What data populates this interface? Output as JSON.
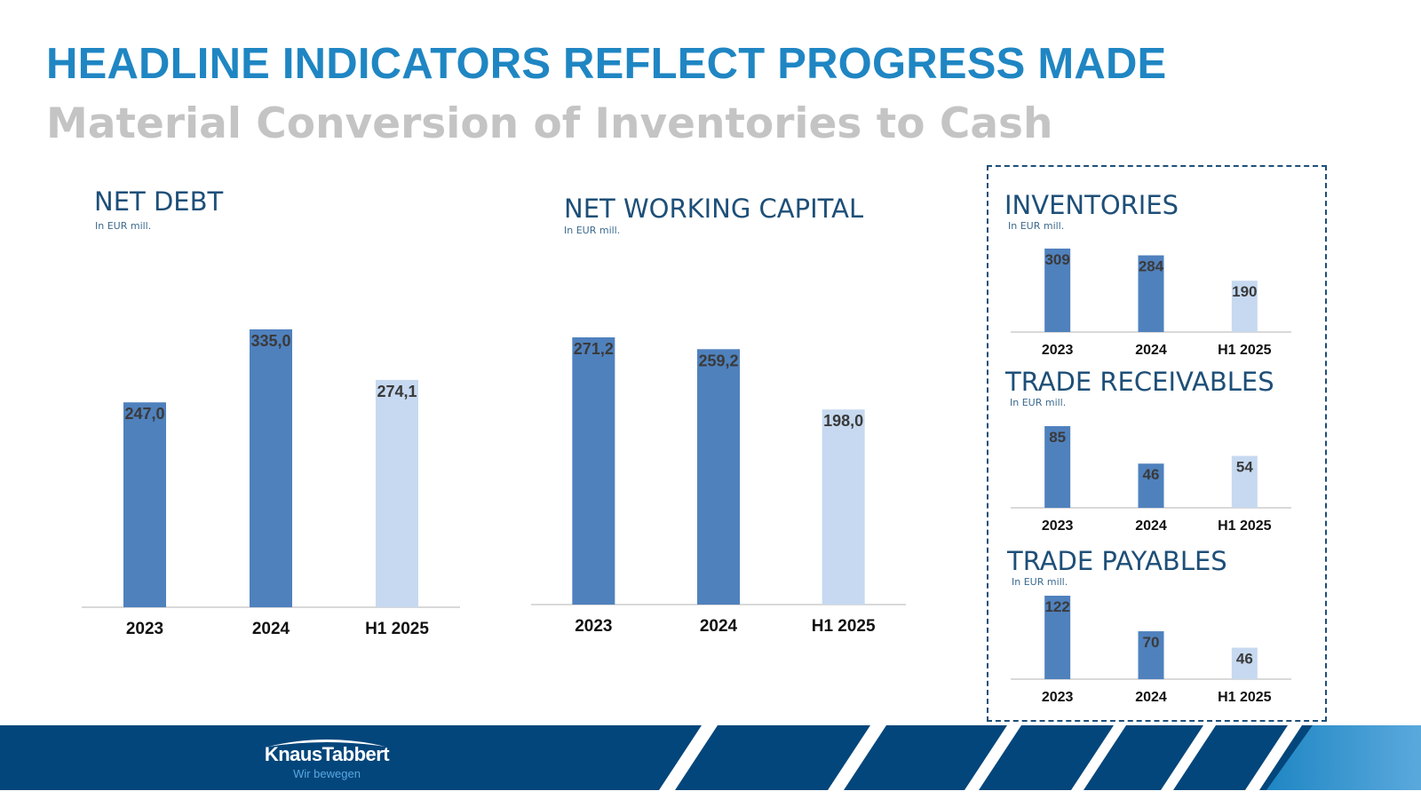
{
  "slide": {
    "headline": "HEADLINE INDICATORS REFLECT PROGRESS MADE",
    "subtitle": "Material Conversion of Inventories to Cash"
  },
  "colors": {
    "headline": "#1f86c3",
    "subtitle": "#c4c4c4",
    "bar_full_year": "#4f81bd",
    "bar_half_year": "#c6d9f0",
    "title_navy": "#1e4f78",
    "footer_navy": "#03467b"
  },
  "chart_data": [
    {
      "type": "bar",
      "title": "NET DEBT",
      "unit": "In EUR mill.",
      "categories": [
        "2023",
        "2024",
        "H1 2025"
      ],
      "values": [
        247.0,
        335.0,
        274.1
      ],
      "labels": [
        "247,0",
        "335,0",
        "274,1"
      ],
      "ylim": [
        0,
        335.0
      ]
    },
    {
      "type": "bar",
      "title": "NET WORKING CAPITAL",
      "unit": "In EUR mill.",
      "categories": [
        "2023",
        "2024",
        "H1 2025"
      ],
      "values": [
        271.2,
        259.2,
        198.0
      ],
      "labels": [
        "271,2",
        "259,2",
        "198,0"
      ],
      "ylim": [
        0,
        271.2
      ]
    },
    {
      "type": "bar",
      "title": "INVENTORIES",
      "unit": "In EUR mill.",
      "categories": [
        "2023",
        "2024",
        "H1 2025"
      ],
      "values": [
        309,
        284,
        190
      ],
      "labels": [
        "309",
        "284",
        "190"
      ],
      "ylim": [
        0,
        309
      ]
    },
    {
      "type": "bar",
      "title": "TRADE RECEIVABLES",
      "unit": "In EUR mill.",
      "categories": [
        "2023",
        "2024",
        "H1 2025"
      ],
      "values": [
        85,
        46,
        54
      ],
      "labels": [
        "85",
        "46",
        "54"
      ],
      "ylim": [
        0,
        85
      ]
    },
    {
      "type": "bar",
      "title": "TRADE PAYABLES",
      "unit": "In EUR mill.",
      "categories": [
        "2023",
        "2024",
        "H1 2025"
      ],
      "values": [
        122,
        70,
        46
      ],
      "labels": [
        "122",
        "70",
        "46"
      ],
      "ylim": [
        0,
        122
      ]
    }
  ],
  "footer": {
    "logo_name": "KnausTabbert",
    "logo_tagline": "Wir bewegen"
  }
}
